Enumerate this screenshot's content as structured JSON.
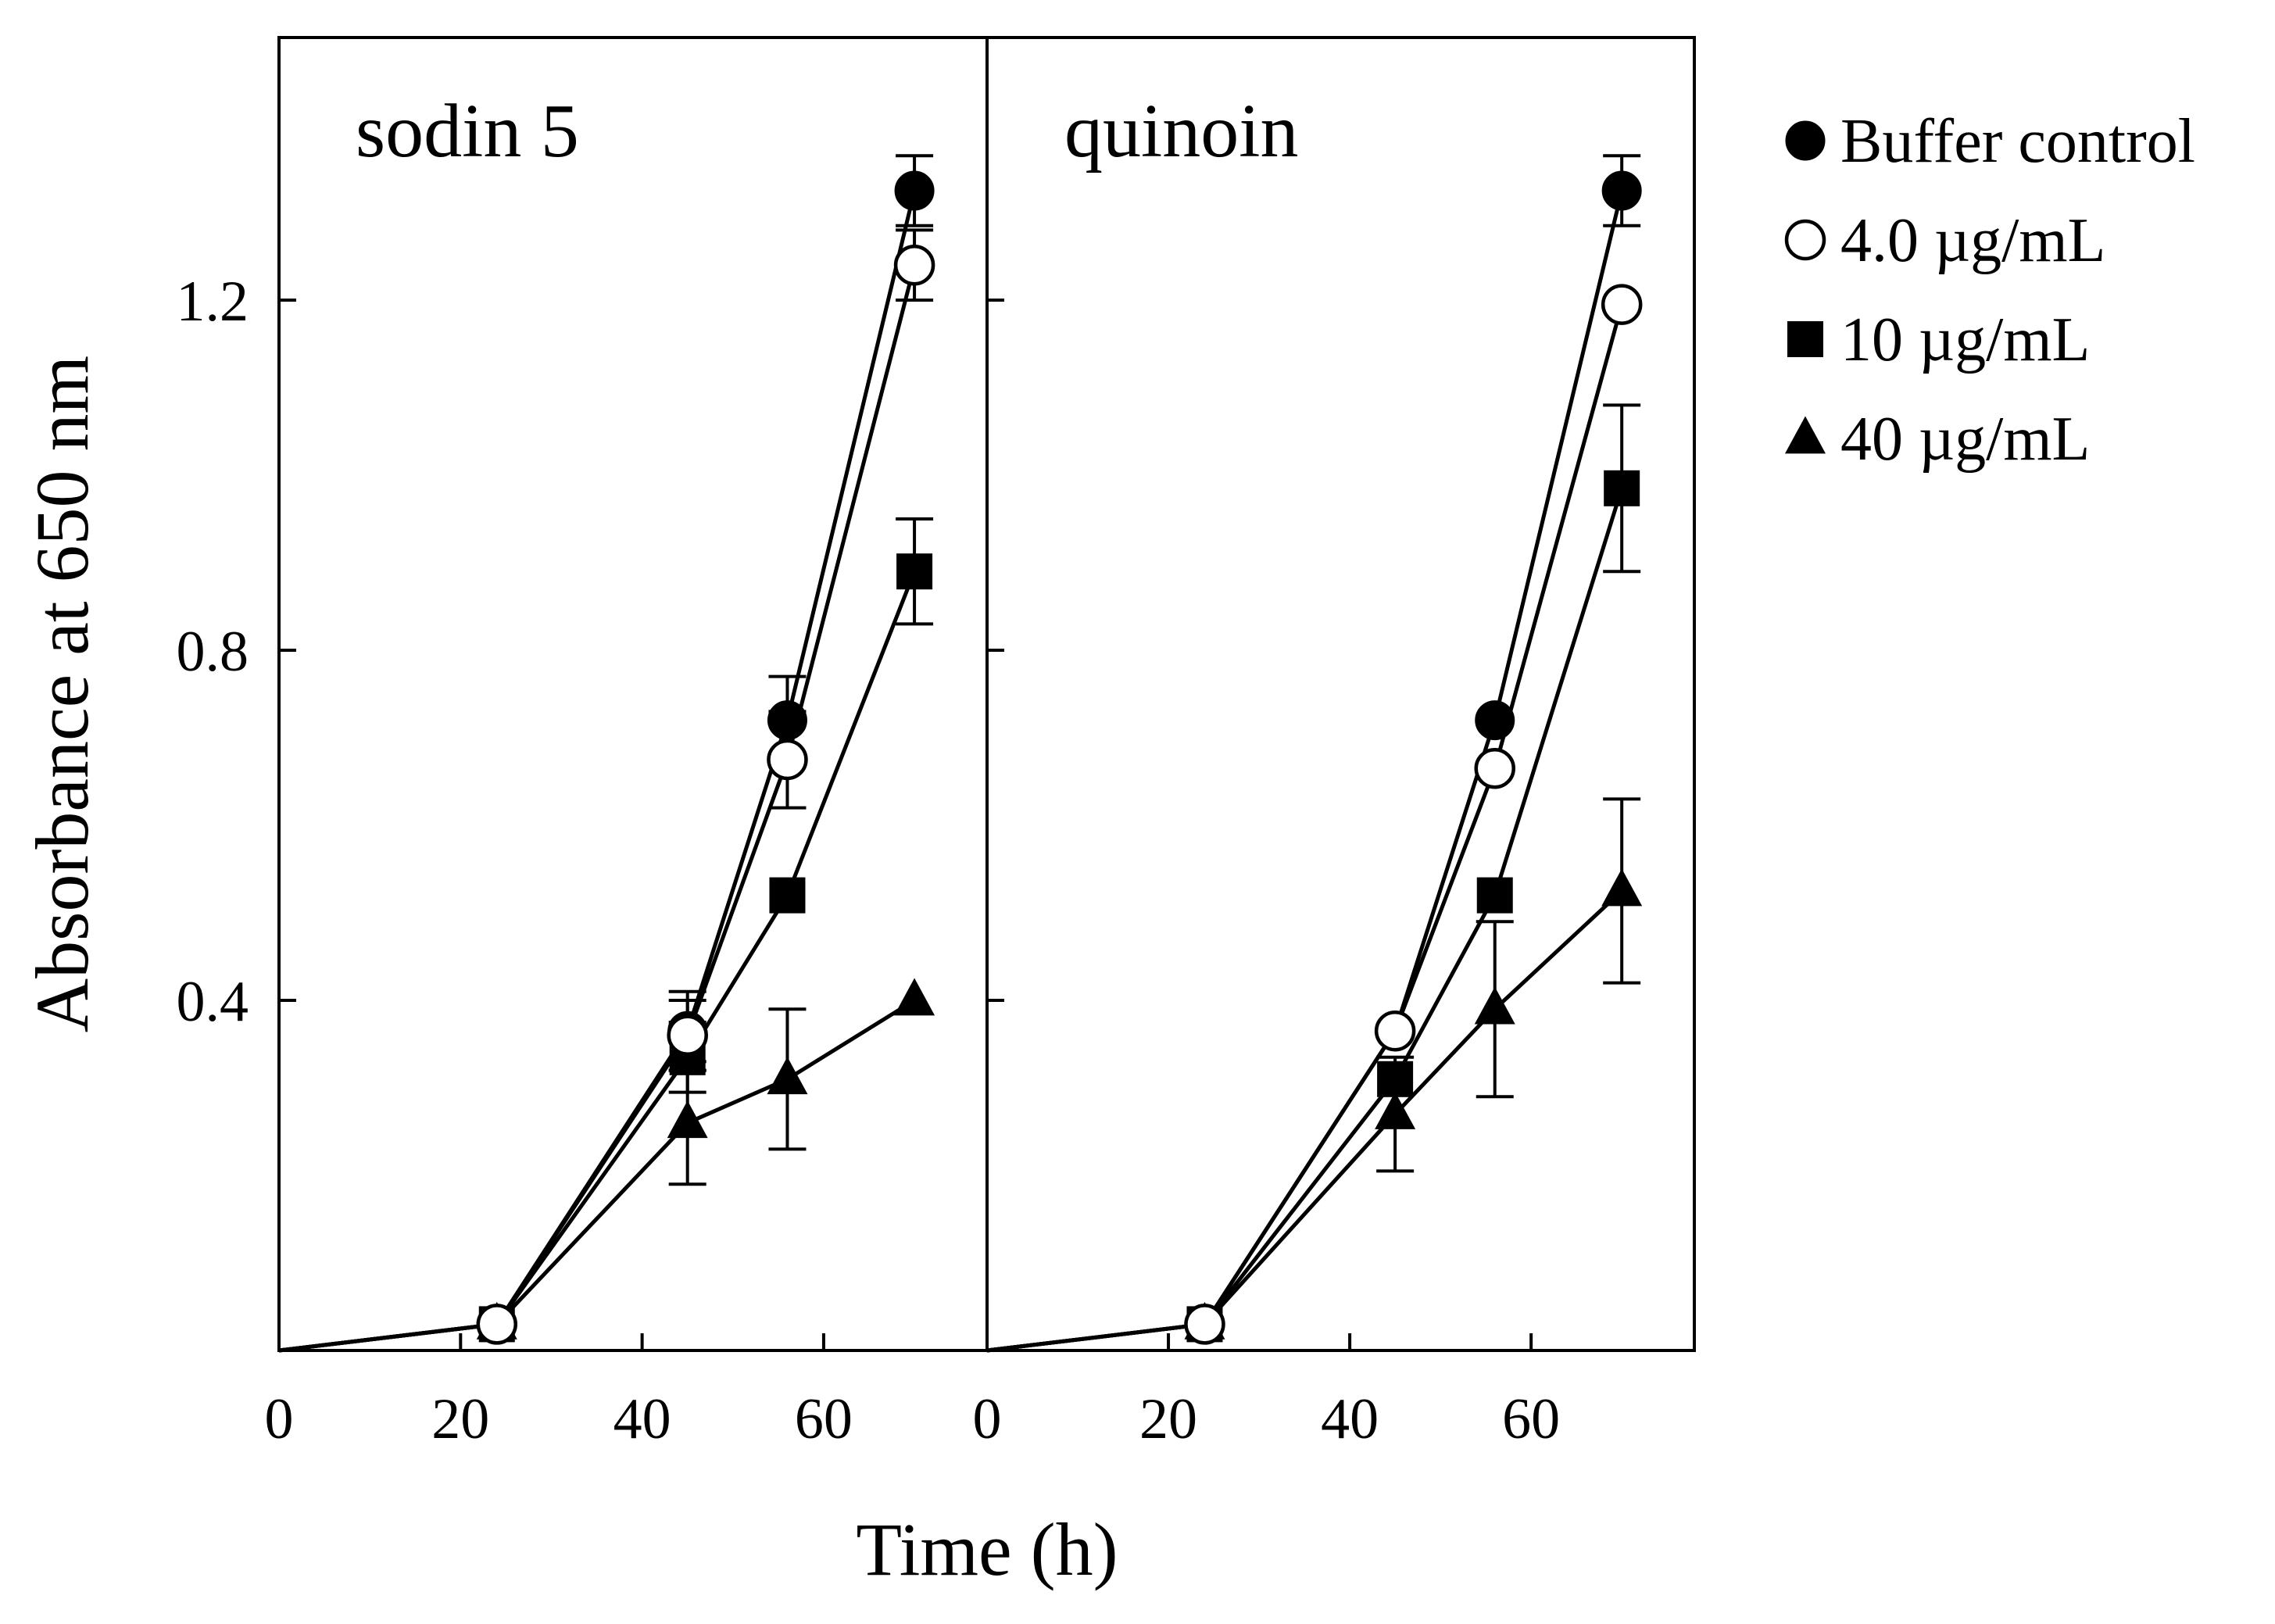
{
  "chart_data": {
    "type": "line",
    "xlabel": "Time (h)",
    "ylabel": "Absorbance at 650 nm",
    "xlim": [
      0,
      78
    ],
    "ylim": [
      0,
      1.5
    ],
    "x_ticks": [
      0,
      20,
      40,
      60
    ],
    "y_ticks": [
      0.4,
      0.8,
      1.2
    ],
    "grid": false,
    "legend_position": "right",
    "legend": [
      {
        "name": "Buffer control",
        "marker": "circle-filled"
      },
      {
        "name": "4.0 µg/mL",
        "marker": "circle-open"
      },
      {
        "name": "10 µg/mL",
        "marker": "square-filled"
      },
      {
        "name": "40 µg/mL",
        "marker": "triangle-filled"
      }
    ],
    "panels": [
      {
        "title": "sodin 5",
        "series": [
          {
            "name": "Buffer control",
            "marker": "circle-filled",
            "points": [
              [
                0,
                0.0,
                0
              ],
              [
                24,
                0.03,
                0
              ],
              [
                45,
                0.365,
                0.045
              ],
              [
                56,
                0.72,
                0.05
              ],
              [
                70,
                1.325,
                0.04
              ]
            ]
          },
          {
            "name": "4.0 µg/mL",
            "marker": "circle-open",
            "points": [
              [
                0,
                0.0,
                0
              ],
              [
                24,
                0.03,
                0
              ],
              [
                45,
                0.36,
                0.04
              ],
              [
                56,
                0.675,
                0.055
              ],
              [
                70,
                1.24,
                0.04
              ]
            ]
          },
          {
            "name": "10 µg/mL",
            "marker": "square-filled",
            "points": [
              [
                0,
                0.0,
                0
              ],
              [
                24,
                0.03,
                0
              ],
              [
                45,
                0.335,
                0.04
              ],
              [
                56,
                0.52,
                0
              ],
              [
                70,
                0.89,
                0.06
              ]
            ]
          },
          {
            "name": "40 µg/mL",
            "marker": "triangle-filled",
            "points": [
              [
                0,
                0.0,
                0
              ],
              [
                24,
                0.03,
                0
              ],
              [
                45,
                0.26,
                0.07
              ],
              [
                56,
                0.31,
                0.08
              ],
              [
                70,
                0.4,
                0
              ]
            ]
          }
        ]
      },
      {
        "title": "quinoin",
        "series": [
          {
            "name": "Buffer control",
            "marker": "circle-filled",
            "points": [
              [
                0,
                0.0,
                0
              ],
              [
                24,
                0.03,
                0
              ],
              [
                45,
                0.365,
                0
              ],
              [
                56,
                0.72,
                0
              ],
              [
                70,
                1.325,
                0.04
              ]
            ]
          },
          {
            "name": "4.0 µg/mL",
            "marker": "circle-open",
            "points": [
              [
                0,
                0.0,
                0
              ],
              [
                24,
                0.03,
                0
              ],
              [
                45,
                0.365,
                0
              ],
              [
                56,
                0.665,
                0
              ],
              [
                70,
                1.195,
                0
              ]
            ]
          },
          {
            "name": "10 µg/mL",
            "marker": "square-filled",
            "points": [
              [
                0,
                0.0,
                0
              ],
              [
                24,
                0.03,
                0
              ],
              [
                45,
                0.31,
                0
              ],
              [
                56,
                0.52,
                0
              ],
              [
                70,
                0.985,
                0.095
              ]
            ]
          },
          {
            "name": "40 µg/mL",
            "marker": "triangle-filled",
            "points": [
              [
                0,
                0.0,
                0
              ],
              [
                24,
                0.03,
                0
              ],
              [
                45,
                0.27,
                0.065
              ],
              [
                56,
                0.39,
                0.1
              ],
              [
                70,
                0.525,
                0.105
              ]
            ]
          }
        ]
      }
    ]
  }
}
